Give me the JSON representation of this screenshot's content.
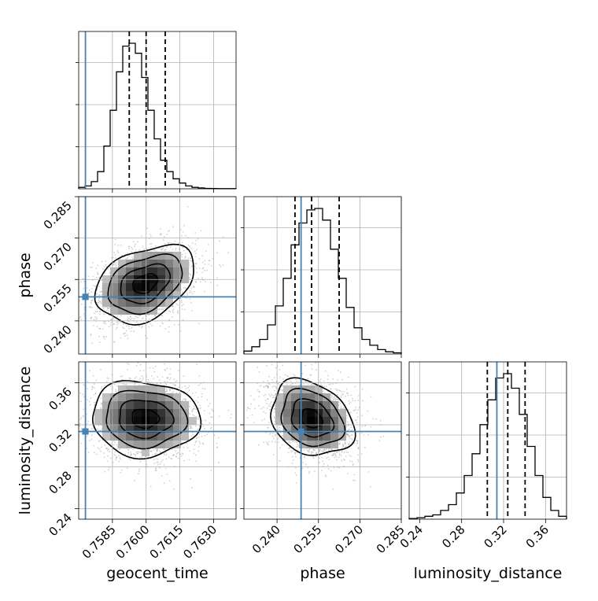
{
  "chart_data": {
    "type": "corner",
    "parameters": [
      "geocent_time",
      "phase",
      "luminosity_distance"
    ],
    "truths": [
      0.7573,
      0.2487,
      0.3136
    ],
    "truth_color": "#4682b4",
    "ranges": [
      [
        0.757,
        0.764
      ],
      [
        0.228,
        0.285
      ],
      [
        0.23,
        0.38
      ]
    ],
    "ticks": [
      [
        "0.7585",
        "0.7600",
        "0.7615",
        "0.7630"
      ],
      [
        "0.240",
        "0.255",
        "0.270",
        "0.285"
      ],
      [
        "0.24",
        "0.28",
        "0.32",
        "0.36"
      ]
    ],
    "quantiles": [
      [
        0.75925,
        0.76,
        0.76085
      ],
      [
        0.2465,
        0.2525,
        0.2625
      ],
      [
        0.3045,
        0.324,
        0.3405
      ]
    ],
    "histograms": [
      {
        "bins": 25,
        "counts": [
          1,
          2,
          5,
          12,
          30,
          55,
          82,
          100,
          102,
          95,
          78,
          55,
          35,
          20,
          12,
          7,
          4,
          2,
          1,
          0.6,
          0.3,
          0.2,
          0.1,
          0.1,
          0.1
        ]
      },
      {
        "bins": 20,
        "counts": [
          2,
          5,
          10,
          20,
          33,
          52,
          75,
          90,
          99,
          100,
          92,
          72,
          52,
          32,
          18,
          10,
          6,
          3,
          1.5,
          0.8
        ]
      },
      {
        "bins": 20,
        "counts": [
          0.5,
          1,
          2,
          3,
          6,
          10,
          18,
          30,
          45,
          65,
          82,
          97,
          100,
          90,
          72,
          50,
          30,
          15,
          6,
          2
        ]
      }
    ],
    "pairs": [
      {
        "x": 0,
        "y": 1,
        "mean": [
          0.75995,
          0.2535
        ],
        "sd": [
          0.0011,
          0.007
        ],
        "rho": 0.35
      },
      {
        "x": 0,
        "y": 2,
        "mean": [
          0.75995,
          0.326
        ],
        "sd": [
          0.0012,
          0.018
        ],
        "rho": -0.05
      },
      {
        "x": 1,
        "y": 2,
        "mean": [
          0.2525,
          0.326
        ],
        "sd": [
          0.0075,
          0.018
        ],
        "rho": -0.25
      }
    ],
    "grid": true
  }
}
